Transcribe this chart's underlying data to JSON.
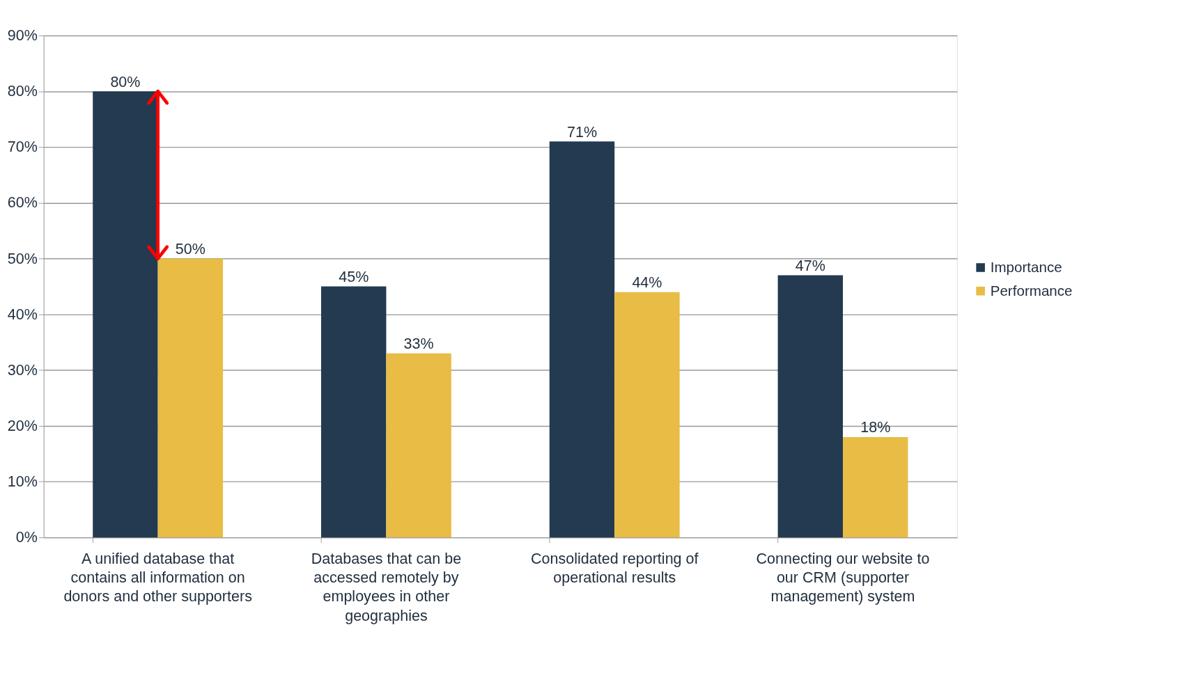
{
  "chart_data": {
    "type": "bar",
    "categories": [
      "A unified database that contains all information on donors and other supporters",
      "Databases that can be accessed remotely by employees in other geographies",
      "Consolidated reporting of operational results",
      "Connecting our website to our CRM (supporter management) system"
    ],
    "series": [
      {
        "name": "Importance",
        "color": "#233a50",
        "values": [
          80,
          45,
          71,
          47
        ],
        "value_labels": [
          "80%",
          "45%",
          "71%",
          "47%"
        ]
      },
      {
        "name": "Performance",
        "color": "#e8bc45",
        "values": [
          50,
          33,
          44,
          18
        ],
        "value_labels": [
          "50%",
          "33%",
          "44%",
          "18%"
        ]
      }
    ],
    "ylim": [
      0,
      90
    ],
    "yticks": [
      {
        "value": 0,
        "label": "0%"
      },
      {
        "value": 10,
        "label": "10%"
      },
      {
        "value": 20,
        "label": "20%"
      },
      {
        "value": 30,
        "label": "30%"
      },
      {
        "value": 40,
        "label": "40%"
      },
      {
        "value": 50,
        "label": "50%"
      },
      {
        "value": 60,
        "label": "60%"
      },
      {
        "value": 70,
        "label": "70%"
      },
      {
        "value": 80,
        "label": "80%"
      },
      {
        "value": 90,
        "label": "90%"
      }
    ],
    "grid": "y",
    "legend": "right"
  }
}
